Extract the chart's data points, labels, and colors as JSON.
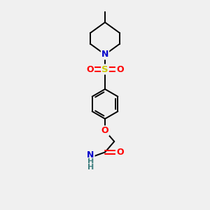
{
  "background_color": "#f0f0f0",
  "atom_colors": {
    "C": "#000000",
    "N": "#0000cc",
    "O": "#ff0000",
    "S": "#cccc00",
    "H": "#408080"
  },
  "bond_color": "#000000",
  "figsize": [
    3.0,
    3.0
  ],
  "dpi": 100,
  "scale": 1.0
}
